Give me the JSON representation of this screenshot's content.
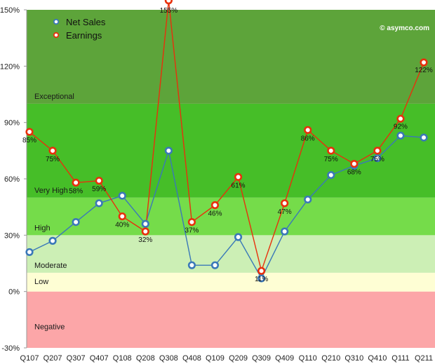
{
  "chart_data": {
    "type": "line",
    "title": "",
    "xlabel": "",
    "ylabel": "",
    "ylim": [
      -30,
      150
    ],
    "y_ticks": [
      -30,
      0,
      30,
      60,
      90,
      120,
      150
    ],
    "y_tick_labels": [
      "-30%",
      "0%",
      "30%",
      "60%",
      "90%",
      "120%",
      "150%"
    ],
    "categories": [
      "Q107",
      "Q207",
      "Q307",
      "Q407",
      "Q108",
      "Q208",
      "Q308",
      "Q408",
      "Q109",
      "Q209",
      "Q309",
      "Q409",
      "Q110",
      "Q210",
      "Q310",
      "Q410",
      "Q111",
      "Q211"
    ],
    "series": [
      {
        "name": "Net Sales",
        "color": "#3a78b8",
        "values": [
          21,
          27,
          37,
          47,
          51,
          36,
          75,
          14,
          14,
          29,
          7,
          32,
          49,
          62,
          67,
          71,
          83,
          82
        ]
      },
      {
        "name": "Earnings",
        "color": "#e8300c",
        "values": [
          85,
          75,
          58,
          59,
          40,
          32,
          155,
          37,
          46,
          61,
          11,
          47,
          86,
          75,
          68,
          75,
          92,
          122
        ],
        "labels": [
          "85%",
          "75%",
          "58%",
          "59%",
          "40%",
          "32%",
          "155%",
          "37%",
          "46%",
          "61%",
          "11%",
          "47%",
          "86%",
          "75%",
          "68%",
          "75%",
          "92%",
          "122%"
        ]
      }
    ],
    "bands": [
      {
        "label": "Negative",
        "from": -30,
        "to": 0,
        "color": "#fca6a8"
      },
      {
        "label": "Low",
        "from": 0,
        "to": 10,
        "color": "#fefed4"
      },
      {
        "label": "Moderate",
        "from": 10,
        "to": 30,
        "color": "#ccefb5"
      },
      {
        "label": "High",
        "from": 30,
        "to": 50,
        "color": "#75dc4a"
      },
      {
        "label": "Very High",
        "from": 50,
        "to": 100,
        "color": "#46be28"
      },
      {
        "label": "Exceptional",
        "from": 100,
        "to": 150,
        "color": "#5da43a"
      }
    ],
    "legend": {
      "placement": "top-left",
      "entries": [
        "Net Sales",
        "Earnings"
      ]
    },
    "credit": "© asymco.com",
    "grid": false
  }
}
